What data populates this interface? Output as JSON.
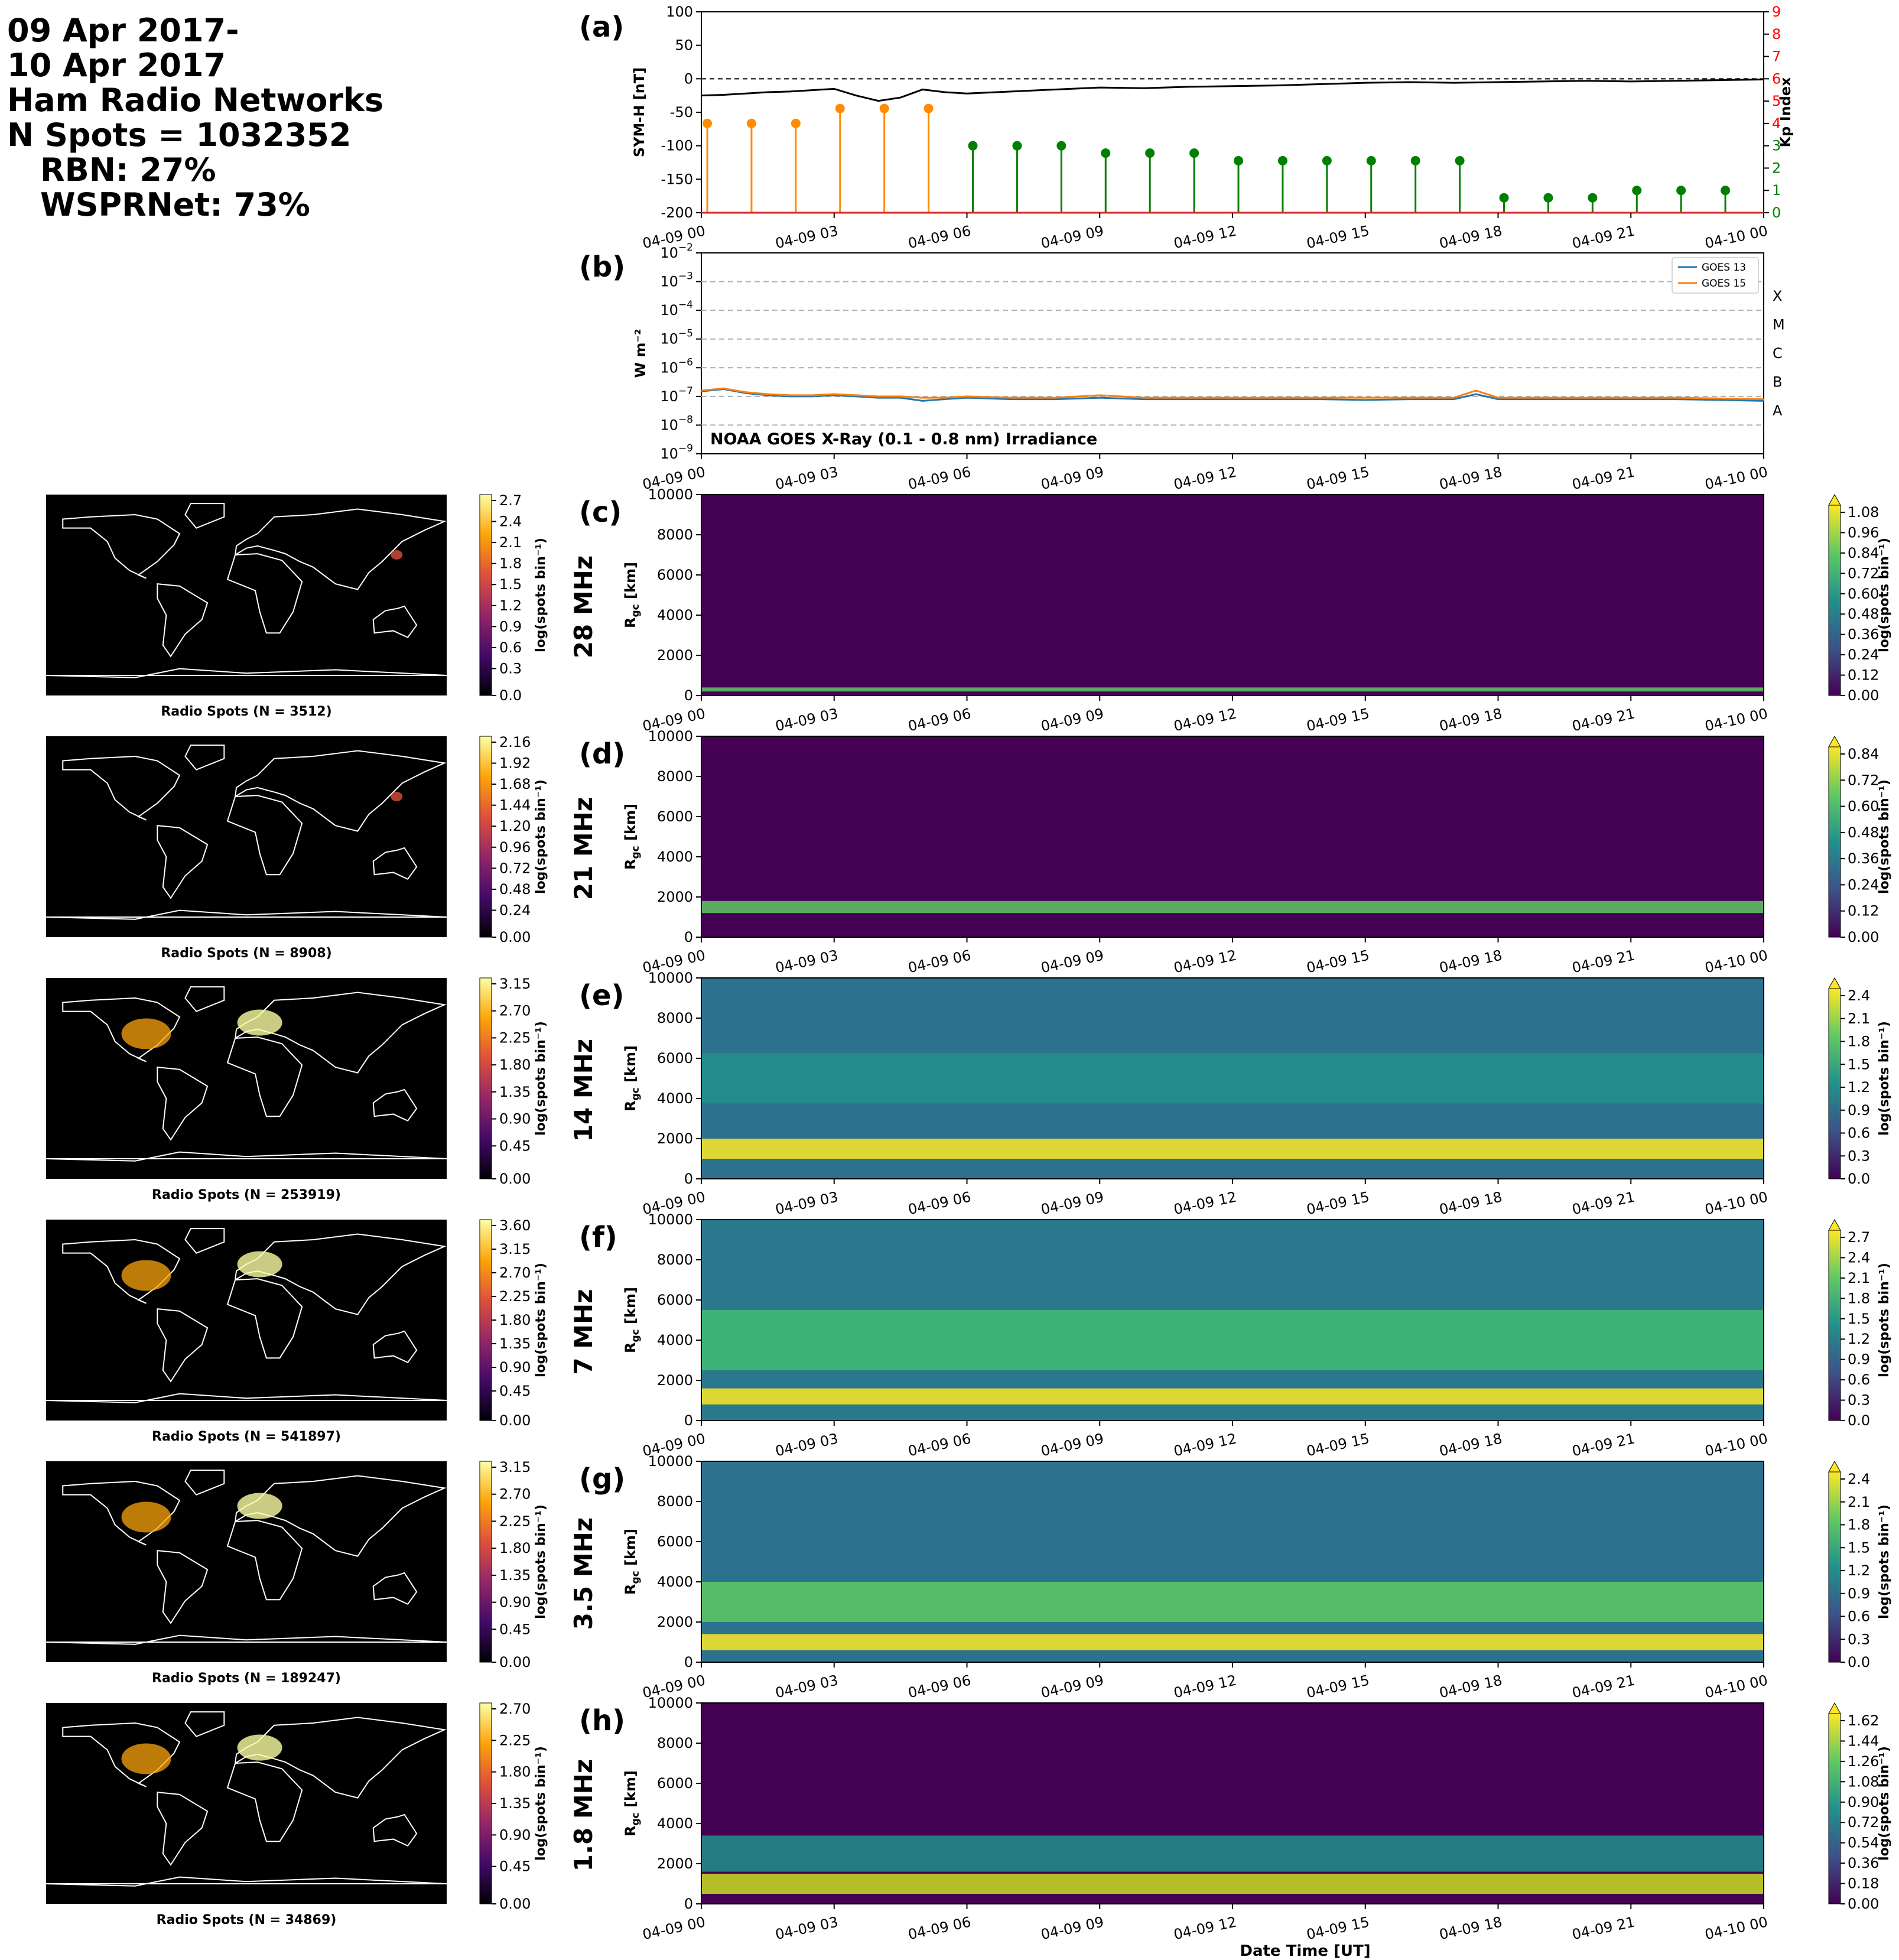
{
  "header": {
    "date_line1": "09 Apr 2017-",
    "date_line2": "10 Apr 2017",
    "title": "Ham Radio Networks",
    "nspots": "N Spots = 1032352",
    "rbn": "RBN: 27%",
    "wspr": "WSPRNet: 73%"
  },
  "time_ticks": [
    "04-09 00",
    "04-09 03",
    "04-09 06",
    "04-09 09",
    "04-09 12",
    "04-09 15",
    "04-09 18",
    "04-09 21",
    "04-10 00"
  ],
  "xlabel": "Date Time [UT]",
  "colors": {
    "kp_storm": "#ff8c00",
    "kp_quiet": "#008000",
    "goes13": "#1f77b4",
    "goes15": "#ff7f0e",
    "symh": "#000000",
    "kp_axis": "#ff0000"
  },
  "chart_data": [
    {
      "type": "line",
      "panel": "(a)",
      "ylabel": "SYM-H [nT]",
      "y2label": "Kp Index",
      "ylim": [
        -200,
        100
      ],
      "yticks": [
        100,
        50,
        0,
        -50,
        -100,
        -150,
        -200
      ],
      "y2lim": [
        0,
        9
      ],
      "y2ticks": [
        0,
        1,
        2,
        3,
        4,
        5,
        6,
        7,
        8,
        9
      ],
      "symh_series": {
        "x_hours": [
          0,
          0.5,
          1,
          1.5,
          2,
          2.5,
          3,
          3.5,
          4,
          4.5,
          5,
          5.5,
          6,
          7,
          8,
          9,
          10,
          11,
          12,
          13,
          14,
          15,
          16,
          17,
          18,
          19,
          20,
          21,
          22,
          23,
          24
        ],
        "values": [
          -25,
          -24,
          -22,
          -20,
          -19,
          -17,
          -15,
          -25,
          -33,
          -28,
          -16,
          -20,
          -22,
          -19,
          -16,
          -13,
          -14,
          -12,
          -11,
          -10,
          -8,
          -6,
          -5,
          -6,
          -5,
          -4,
          -3,
          -4,
          -3,
          -2,
          -1
        ]
      },
      "kp_series": {
        "x_hours": [
          0,
          1,
          2,
          3,
          4,
          5,
          6,
          7,
          8,
          9,
          10,
          11,
          12,
          13,
          14,
          15,
          16,
          17,
          18,
          19,
          20,
          21,
          22,
          23
        ],
        "values": [
          4,
          4,
          4,
          4.67,
          4.67,
          4.67,
          3,
          3,
          3,
          2.67,
          2.67,
          2.67,
          2.33,
          2.33,
          2.33,
          2.33,
          2.33,
          2.33,
          0.67,
          0.67,
          0.67,
          1,
          1,
          1
        ]
      }
    },
    {
      "type": "line",
      "panel": "(b)",
      "title": "NOAA GOES X-Ray (0.1 - 0.8 nm) Irradiance",
      "ylabel": "W m⁻²",
      "yscale": "log",
      "ylim": [
        1e-09,
        0.01
      ],
      "flare_classes": [
        "A",
        "B",
        "C",
        "M",
        "X"
      ],
      "series": [
        {
          "name": "GOES 13",
          "x_hours": [
            0,
            0.5,
            1,
            1.5,
            2,
            2.5,
            3,
            3.5,
            4,
            4.5,
            5,
            5.5,
            6,
            7,
            8,
            9,
            10,
            11,
            12,
            13,
            14,
            15,
            16,
            17,
            17.5,
            18,
            19,
            20,
            21,
            22,
            23,
            24
          ],
          "values": [
            1.5e-07,
            1.8e-07,
            1.3e-07,
            1.1e-07,
            1e-07,
            1e-07,
            1.1e-07,
            1e-07,
            9e-08,
            9e-08,
            7e-08,
            8e-08,
            9e-08,
            8e-08,
            8e-08,
            9e-08,
            8e-08,
            8e-08,
            8e-08,
            8e-08,
            8e-08,
            7.5e-08,
            8e-08,
            8e-08,
            1.2e-07,
            8e-08,
            8e-08,
            8e-08,
            8e-08,
            8e-08,
            7.5e-08,
            7e-08
          ]
        },
        {
          "name": "GOES 15",
          "x_hours": [
            0,
            0.5,
            1,
            1.5,
            2,
            2.5,
            3,
            3.5,
            4,
            4.5,
            5,
            5.5,
            6,
            7,
            8,
            9,
            10,
            11,
            12,
            13,
            14,
            15,
            16,
            17,
            17.5,
            18,
            19,
            20,
            21,
            22,
            23,
            24
          ],
          "values": [
            1.6e-07,
            1.9e-07,
            1.4e-07,
            1.2e-07,
            1.1e-07,
            1.1e-07,
            1.2e-07,
            1.1e-07,
            1e-07,
            1e-07,
            9e-08,
            9e-08,
            1e-07,
            9e-08,
            9e-08,
            1.1e-07,
            9e-08,
            9e-08,
            9e-08,
            9e-08,
            9e-08,
            9e-08,
            9e-08,
            9e-08,
            1.6e-07,
            9e-08,
            9e-08,
            9e-08,
            9e-08,
            9e-08,
            8.5e-08,
            8e-08
          ]
        }
      ]
    },
    {
      "type": "heatmap",
      "panel": "(c)",
      "band": "28 MHz",
      "ylabel": "R_gc [km]",
      "ylim": [
        0,
        10000
      ],
      "map_title": "Radio Spots (N = 3512)",
      "map_cbar_ticks": [
        "0.0",
        "0.3",
        "0.6",
        "0.9",
        "1.2",
        "1.5",
        "1.8",
        "2.1",
        "2.4",
        "2.7"
      ],
      "cbar_ticks": [
        "0.00",
        "0.12",
        "0.24",
        "0.36",
        "0.48",
        "0.60",
        "0.72",
        "0.84",
        "0.96",
        "1.08"
      ],
      "cbar_label": "log(spots bin⁻¹)"
    },
    {
      "type": "heatmap",
      "panel": "(d)",
      "band": "21 MHz",
      "ylabel": "R_gc [km]",
      "ylim": [
        0,
        10000
      ],
      "map_title": "Radio Spots (N = 8908)",
      "map_cbar_ticks": [
        "0.00",
        "0.24",
        "0.48",
        "0.72",
        "0.96",
        "1.20",
        "1.44",
        "1.68",
        "1.92",
        "2.16"
      ],
      "cbar_ticks": [
        "0.00",
        "0.12",
        "0.24",
        "0.36",
        "0.48",
        "0.60",
        "0.72",
        "0.84"
      ],
      "cbar_label": "log(spots bin⁻¹)"
    },
    {
      "type": "heatmap",
      "panel": "(e)",
      "band": "14 MHz",
      "ylabel": "R_gc [km]",
      "ylim": [
        0,
        10000
      ],
      "map_title": "Radio Spots (N = 253919)",
      "map_cbar_ticks": [
        "0.00",
        "0.45",
        "0.90",
        "1.35",
        "1.80",
        "2.25",
        "2.70",
        "3.15"
      ],
      "cbar_ticks": [
        "0.0",
        "0.3",
        "0.6",
        "0.9",
        "1.2",
        "1.5",
        "1.8",
        "2.1",
        "2.4"
      ],
      "cbar_label": "log(spots bin⁻¹)"
    },
    {
      "type": "heatmap",
      "panel": "(f)",
      "band": "7 MHz",
      "ylabel": "R_gc [km]",
      "ylim": [
        0,
        10000
      ],
      "map_title": "Radio Spots (N = 541897)",
      "map_cbar_ticks": [
        "0.00",
        "0.45",
        "0.90",
        "1.35",
        "1.80",
        "2.25",
        "2.70",
        "3.15",
        "3.60"
      ],
      "cbar_ticks": [
        "0.0",
        "0.3",
        "0.6",
        "0.9",
        "1.2",
        "1.5",
        "1.8",
        "2.1",
        "2.4",
        "2.7"
      ],
      "cbar_label": "log(spots bin⁻¹)"
    },
    {
      "type": "heatmap",
      "panel": "(g)",
      "band": "3.5 MHz",
      "ylabel": "R_gc [km]",
      "ylim": [
        0,
        10000
      ],
      "map_title": "Radio Spots (N = 189247)",
      "map_cbar_ticks": [
        "0.00",
        "0.45",
        "0.90",
        "1.35",
        "1.80",
        "2.25",
        "2.70",
        "3.15"
      ],
      "cbar_ticks": [
        "0.0",
        "0.3",
        "0.6",
        "0.9",
        "1.2",
        "1.5",
        "1.8",
        "2.1",
        "2.4"
      ],
      "cbar_label": "log(spots bin⁻¹)"
    },
    {
      "type": "heatmap",
      "panel": "(h)",
      "band": "1.8 MHz",
      "ylabel": "R_gc [km]",
      "ylim": [
        0,
        10000
      ],
      "map_title": "Radio Spots (N = 34869)",
      "map_cbar_ticks": [
        "0.00",
        "0.45",
        "0.90",
        "1.35",
        "1.80",
        "2.25",
        "2.70"
      ],
      "cbar_ticks": [
        "0.00",
        "0.18",
        "0.36",
        "0.54",
        "0.72",
        "0.90",
        "1.08",
        "1.26",
        "1.44",
        "1.62"
      ],
      "cbar_label": "log(spots bin⁻¹)"
    }
  ]
}
